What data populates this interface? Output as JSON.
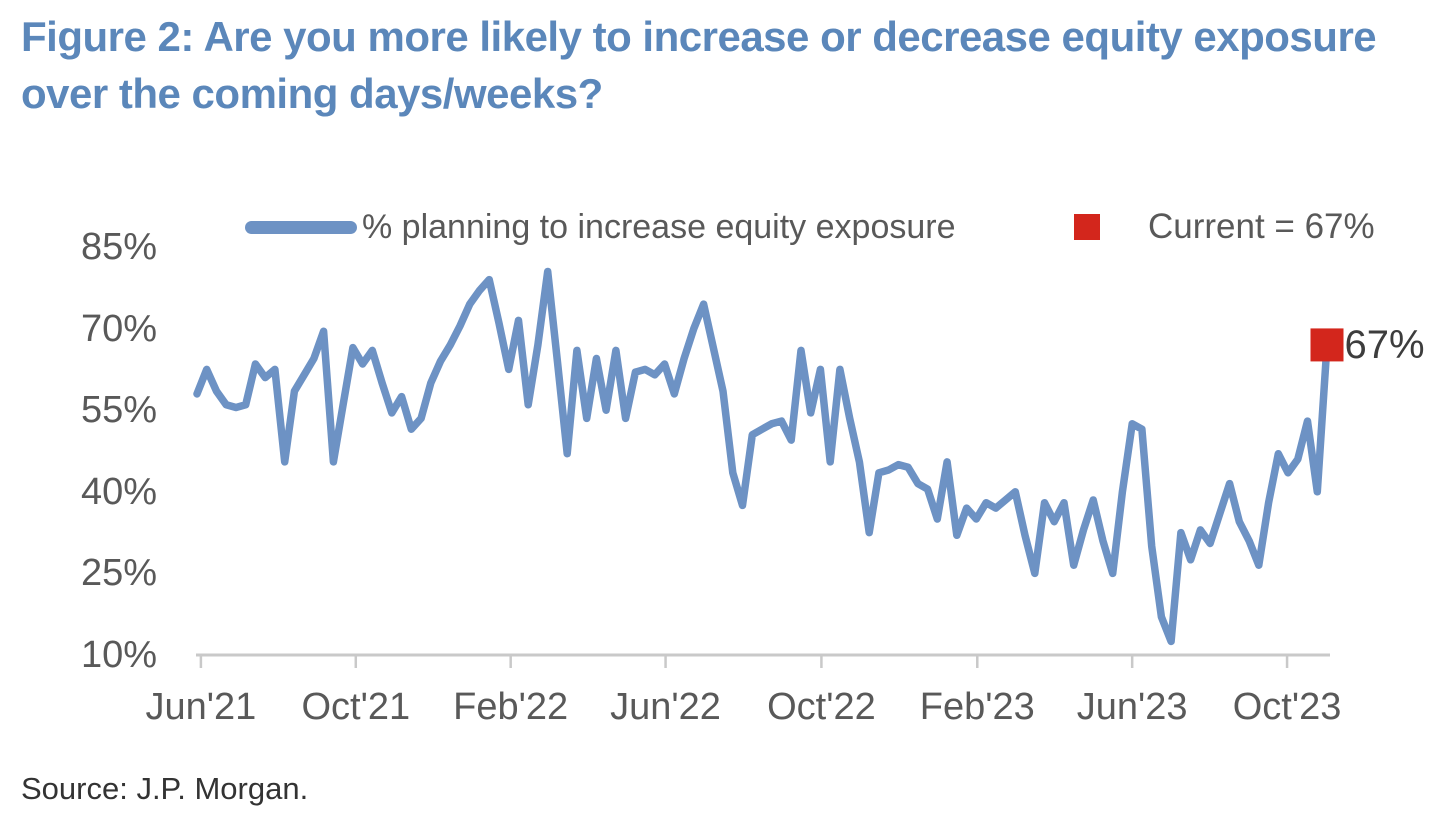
{
  "title": "Figure 2: Are you more likely to increase or decrease equity exposure over the coming days/weeks?",
  "source": "Source: J.P. Morgan.",
  "colors": {
    "line": "#6d92c4",
    "marker": "#d3261c",
    "title": "#5b87ba",
    "labels": "#595959",
    "annotation": "#3d3d3d",
    "axis": "#c9c9c9"
  },
  "legend": [
    {
      "label": "% planning to increase equity exposure",
      "swatch": "line"
    },
    {
      "label": "Current = 67%",
      "swatch": "square"
    }
  ],
  "annotation": {
    "text": "67%",
    "value": 67
  },
  "chart_data": {
    "type": "line",
    "title": "Figure 2: Are you more likely to increase or decrease equity exposure over the coming days/weeks?",
    "xlabel": "",
    "ylabel": "",
    "grid": false,
    "legend_position": "top",
    "ylim": [
      10,
      85
    ],
    "y_ticks": [
      85,
      70,
      55,
      40,
      25,
      10
    ],
    "y_tick_suffix": "%",
    "x_tick_labels": [
      "Jun'21",
      "Oct'21",
      "Feb'22",
      "Jun'22",
      "Oct'22",
      "Feb'23",
      "Jun'23",
      "Oct'23"
    ],
    "x_tick_indices": [
      0.4,
      16.3,
      32.2,
      48.1,
      64.1,
      80.1,
      96.0,
      111.9
    ],
    "current_value": 67,
    "series": [
      {
        "name": "% planning to increase equity exposure",
        "cadence": "weekly, Jun 2021 - Nov 2023",
        "values": [
          58,
          62.5,
          58.5,
          56,
          55.5,
          56,
          63.5,
          61,
          62.5,
          45.5,
          58.5,
          61.5,
          64.5,
          69.5,
          45.5,
          56,
          66.5,
          63.5,
          66,
          60,
          54.5,
          57.5,
          51.5,
          53.5,
          60,
          64,
          67,
          70.5,
          74.5,
          77,
          79,
          71,
          62.5,
          71.5,
          56,
          67,
          80.5,
          64,
          47,
          66,
          53.5,
          64.5,
          55,
          66,
          53.5,
          62,
          62.5,
          61.5,
          63.5,
          58,
          64.5,
          70,
          74.5,
          66.5,
          58.5,
          43.5,
          37.5,
          50.5,
          51.5,
          52.5,
          53,
          49.5,
          66,
          54.5,
          62.5,
          45.5,
          62.5,
          53.5,
          45.5,
          32.5,
          43.5,
          44,
          45,
          44.5,
          41.5,
          40.5,
          35,
          45.5,
          32,
          37,
          35,
          38,
          37,
          38.5,
          40,
          32,
          25,
          38,
          34.5,
          38,
          26.5,
          33,
          38.5,
          31,
          25,
          40,
          52.5,
          51.5,
          30,
          17,
          12.5,
          32.5,
          27.5,
          33,
          30.5,
          36,
          41.5,
          34.5,
          31,
          26.5,
          38,
          47,
          43.5,
          46,
          53,
          40,
          67
        ]
      }
    ]
  }
}
